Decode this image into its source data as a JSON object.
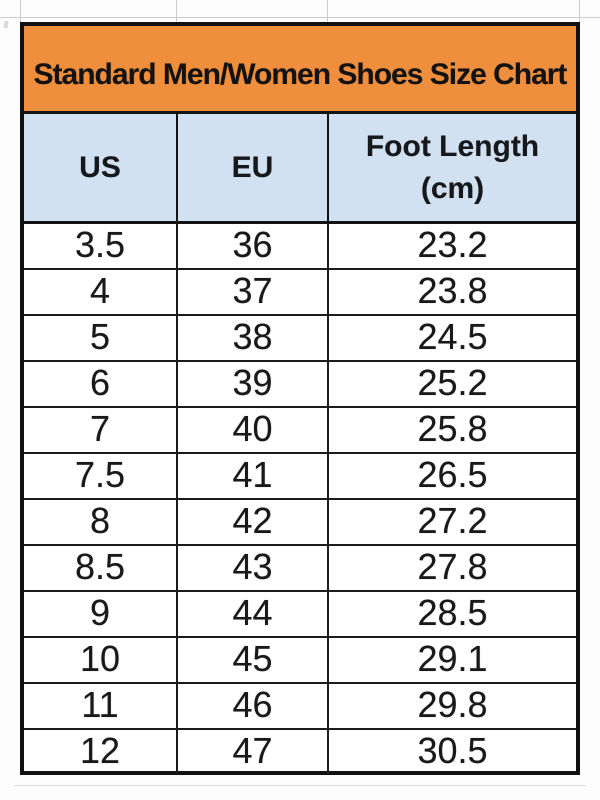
{
  "chart_data": {
    "type": "table",
    "title": "Standard Men/Women Shoes Size Chart",
    "columns": [
      "US",
      "EU",
      "Foot Length (cm)"
    ],
    "rows": [
      [
        "3.5",
        "36",
        "23.2"
      ],
      [
        "4",
        "37",
        "23.8"
      ],
      [
        "5",
        "38",
        "24.5"
      ],
      [
        "6",
        "39",
        "25.2"
      ],
      [
        "7",
        "40",
        "25.8"
      ],
      [
        "7.5",
        "41",
        "26.5"
      ],
      [
        "8",
        "42",
        "27.2"
      ],
      [
        "8.5",
        "43",
        "27.8"
      ],
      [
        "9",
        "44",
        "28.5"
      ],
      [
        "10",
        "45",
        "29.1"
      ],
      [
        "11",
        "46",
        "29.8"
      ],
      [
        "12",
        "47",
        "30.5"
      ]
    ],
    "layout": "3-column bordered size chart; orange title band, light blue header band, white data rows"
  },
  "table": {
    "title": "Standard Men/Women Shoes Size Chart",
    "headers": {
      "us": "US",
      "eu": "EU",
      "foot_length_line1": "Foot Length",
      "foot_length_line2": "(cm)"
    }
  },
  "colors": {
    "title_bg": "#ef8e3c",
    "header_bg": "#d2e1f1",
    "border": "#131313",
    "text": "#191919",
    "gridline": "#c9cdd1",
    "page_bg": "#fdfdfd"
  }
}
